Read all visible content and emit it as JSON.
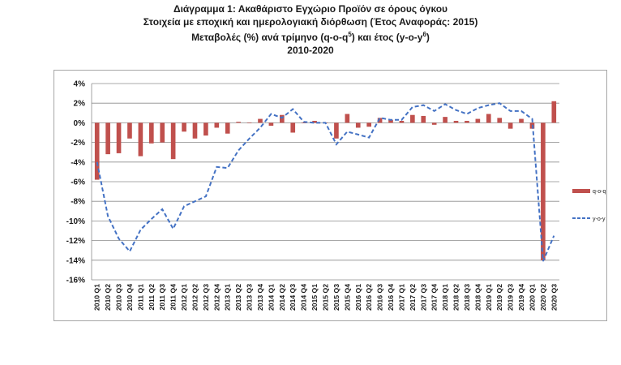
{
  "title_lines": [
    "Διάγραμμα 1: Ακαθάριστο Εγχώριο Προϊόν σε όρους όγκου",
    "Στοιχεία με εποχική και ημερολογιακή διόρθωση (Έτος Αναφοράς: 2015)",
    "Μεταβολές (%) ανά τρίμηνο (q-o-q5) και έτος (y-o-y6)",
    "2010-2020"
  ],
  "chart_data": {
    "type": "bar",
    "title": "Διάγραμμα 1: Ακαθάριστο Εγχώριο Προϊόν σε όρους όγκου",
    "subtitle": "Στοιχεία με εποχική και ημερολογιακή διόρθωση (Έτος Αναφοράς: 2015) / Μεταβολές (%) ανά τρίμηνο (q-o-q5) και έτος (y-o-y6) / 2010-2020",
    "xlabel": "",
    "ylabel": "",
    "ylim": [
      -16,
      4
    ],
    "yticks": [
      "4%",
      "2%",
      "0%",
      "-2%",
      "-4%",
      "-6%",
      "-8%",
      "-10%",
      "-12%",
      "-14%",
      "-16%"
    ],
    "grid": "horizontal",
    "legend_position": "right",
    "categories": [
      "2010 Q1",
      "2010 Q2",
      "2010 Q3",
      "2010 Q4",
      "2011 Q1",
      "2011 Q2",
      "2011 Q3",
      "2011 Q4",
      "2012 Q1",
      "2012 Q2",
      "2012 Q3",
      "2012 Q4",
      "2013 Q1",
      "2013 Q2",
      "2013 Q3",
      "2013 Q4",
      "2014 Q1",
      "2014 Q2",
      "2014 Q3",
      "2014 Q4",
      "2015 Q1",
      "2015 Q2",
      "2015 Q3",
      "2015 Q4",
      "2016 Q1",
      "2016 Q2",
      "2016 Q3",
      "2016 Q4",
      "2017 Q1",
      "2017 Q2",
      "2017 Q3",
      "2017 Q4",
      "2018 Q1",
      "2018 Q2",
      "2018 Q3",
      "2018 Q4",
      "2019 Q1",
      "2019 Q2",
      "2019 Q3",
      "2019 Q4",
      "2020 Q1",
      "2020 Q2",
      "2020 Q3"
    ],
    "series": [
      {
        "name": "q-o-q",
        "kind": "bar",
        "color": "#c0504d",
        "values": [
          -5.8,
          -3.2,
          -3.1,
          -1.6,
          -3.4,
          -2.1,
          -2.0,
          -3.7,
          -0.9,
          -1.6,
          -1.3,
          -0.5,
          -1.1,
          0.1,
          0.0,
          0.4,
          -0.3,
          0.8,
          -1.0,
          0.0,
          0.2,
          0.0,
          -1.6,
          0.9,
          -0.5,
          -0.4,
          0.5,
          0.3,
          0.2,
          0.8,
          0.7,
          -0.2,
          0.6,
          0.2,
          0.2,
          0.4,
          0.9,
          0.5,
          -0.6,
          0.4,
          -0.6,
          -14.0,
          2.2
        ]
      },
      {
        "name": "y-o-y",
        "kind": "line",
        "style": "dashed",
        "color": "#4472c4",
        "values": [
          -4.0,
          -9.5,
          -11.8,
          -13.1,
          -10.9,
          -9.8,
          -8.8,
          -10.8,
          -8.5,
          -8.0,
          -7.5,
          -4.5,
          -4.6,
          -2.8,
          -1.6,
          -0.5,
          0.9,
          0.5,
          1.4,
          0.1,
          0.0,
          0.0,
          -2.2,
          -0.9,
          -1.2,
          -1.5,
          0.5,
          0.3,
          0.3,
          1.6,
          1.8,
          1.2,
          1.9,
          1.3,
          0.9,
          1.5,
          1.8,
          2.0,
          1.2,
          1.2,
          0.4,
          -14.1,
          -11.5
        ]
      }
    ]
  }
}
